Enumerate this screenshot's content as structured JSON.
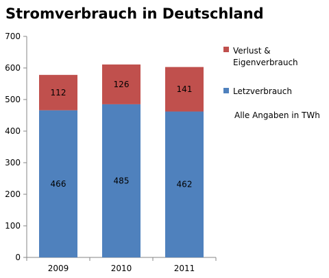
{
  "chart_data": {
    "type": "bar",
    "stacked": true,
    "title": "Stromverbrauch in Deutschland",
    "note": "Alle Angaben in TWh",
    "categories": [
      "2009",
      "2010",
      "2011"
    ],
    "series": [
      {
        "name": "Letzverbrauch",
        "color": "#4f81bd",
        "values": [
          466,
          485,
          462
        ]
      },
      {
        "name": "Verlust & Eigenverbrauch",
        "legend_lines": [
          "Verlust &",
          "Eigenverbrauch"
        ],
        "color": "#c0504d",
        "values": [
          112,
          126,
          141
        ]
      }
    ],
    "ylim": [
      0,
      700
    ],
    "yticks": [
      0,
      100,
      200,
      300,
      400,
      500,
      600,
      700
    ],
    "grid": false,
    "legend_position": "right"
  }
}
